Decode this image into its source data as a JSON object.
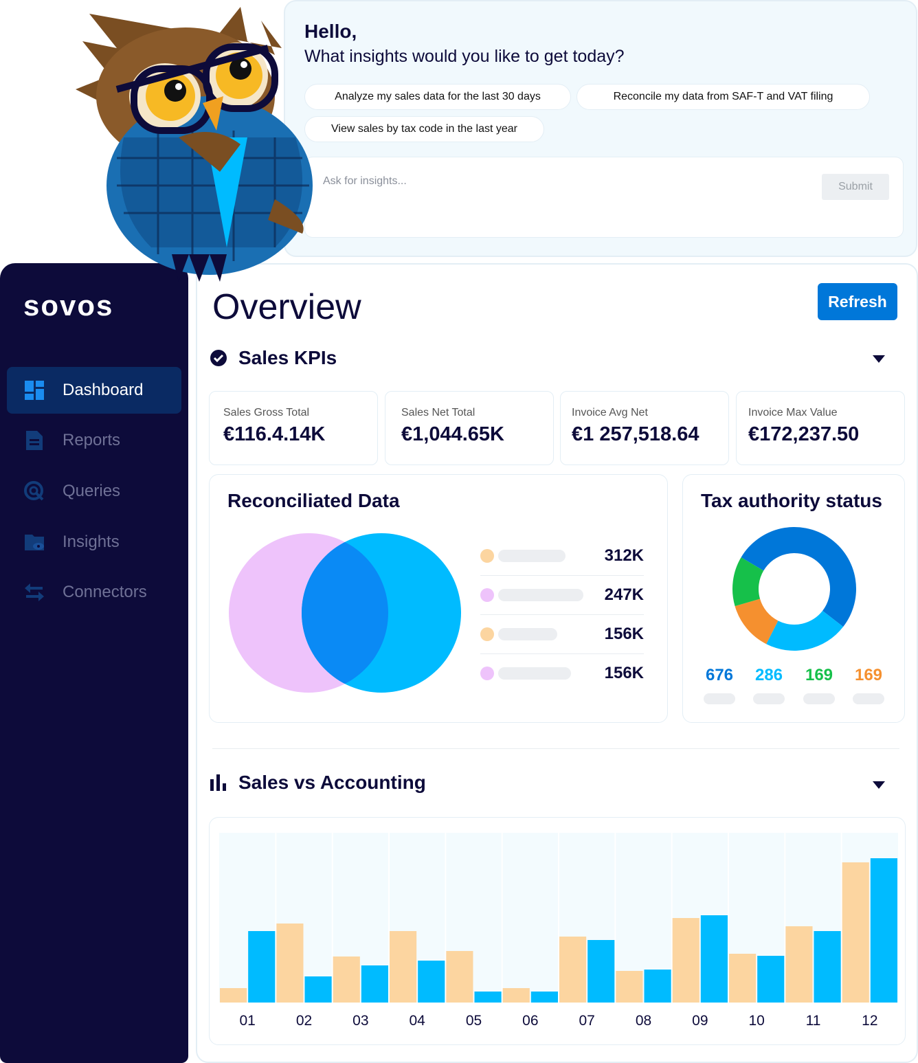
{
  "chat": {
    "greeting": "Hello,",
    "question": "What insights would you like to get today?",
    "suggestions": [
      "Analyze my sales data for the last 30 days",
      "Reconcile my data from SAF-T and VAT filing",
      "View sales by tax code in the last year"
    ],
    "input_placeholder": "Ask for insights...",
    "submit_label": "Submit"
  },
  "sidebar": {
    "logo": "sovos",
    "items": [
      {
        "label": "Dashboard",
        "icon": "dashboard-icon",
        "active": true
      },
      {
        "label": "Reports",
        "icon": "document-icon"
      },
      {
        "label": "Queries",
        "icon": "search-icon"
      },
      {
        "label": "Insights",
        "icon": "folder-eye-icon"
      },
      {
        "label": "Connectors",
        "icon": "arrows-swap-icon"
      }
    ]
  },
  "main": {
    "title": "Overview",
    "refresh_label": "Refresh",
    "kpi_section": "Sales KPIs",
    "kpis": [
      {
        "label": "Sales Gross Total",
        "value": "€116.4.14K"
      },
      {
        "label": "Sales Net Total",
        "value": "€1,044.65K"
      },
      {
        "label": "Invoice Avg Net",
        "value": "€1 257,518.64"
      },
      {
        "label": "Invoice Max Value",
        "value": "€172,237.50"
      }
    ],
    "reconciliated": {
      "title": "Reconciliated Data",
      "legend": [
        {
          "value": "312K",
          "color": "#fcd5a0"
        },
        {
          "value": "247K",
          "color": "#eec3fb"
        },
        {
          "value": "156K",
          "color": "#fcd5a0"
        },
        {
          "value": "156K",
          "color": "#eec3fb"
        }
      ]
    },
    "tax_status": {
      "title": "Tax authority status",
      "values": [
        {
          "value": "676",
          "color": "#0077d9"
        },
        {
          "value": "286",
          "color": "#00bbff"
        },
        {
          "value": "169",
          "color": "#16c04a"
        },
        {
          "value": "169",
          "color": "#f5902f"
        }
      ]
    },
    "sales_section": "Sales vs Accounting"
  },
  "chart_data": {
    "type": "bar",
    "categories": [
      "01",
      "02",
      "03",
      "04",
      "05",
      "06",
      "07",
      "08",
      "09",
      "10",
      "11",
      "12"
    ],
    "series": [
      {
        "name": "Sales",
        "color": "#fcd5a0",
        "values": [
          21,
          115,
          67,
          104,
          75,
          21,
          96,
          46,
          123,
          71,
          111,
          204
        ]
      },
      {
        "name": "Accounting",
        "color": "#00bbff",
        "values": [
          104,
          38,
          54,
          61,
          16,
          16,
          91,
          48,
          127,
          68,
          104,
          210
        ]
      }
    ],
    "ylim": [
      0,
      247
    ],
    "title": "",
    "xlabel": "",
    "ylabel": ""
  }
}
